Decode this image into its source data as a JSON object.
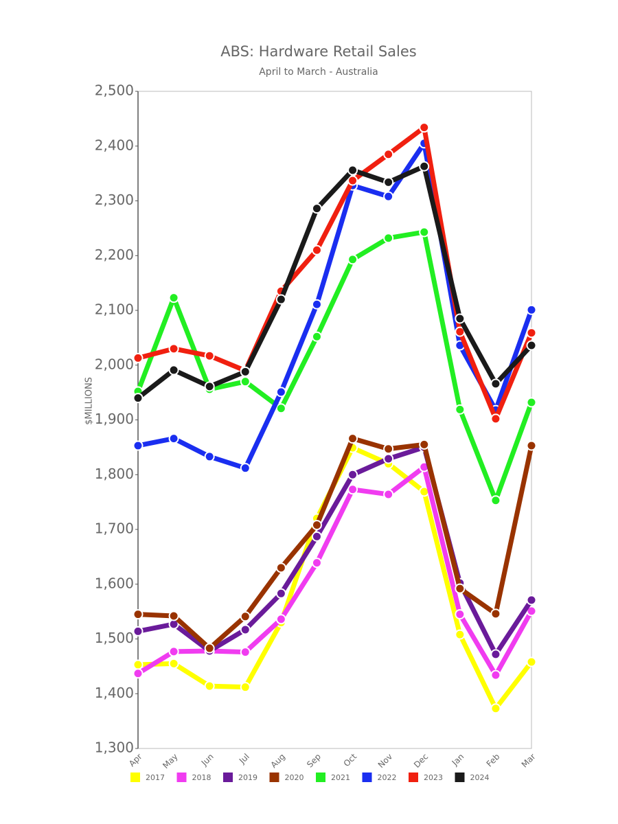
{
  "chart_data": {
    "type": "line",
    "title": "ABS: Hardware Retail Sales",
    "subtitle": "April to March - Australia",
    "y_label": "$MILLIONS",
    "categories": [
      "Apr",
      "May",
      "Jun",
      "Jul",
      "Aug",
      "Sep",
      "Oct",
      "Nov",
      "Dec",
      "Jan",
      "Feb",
      "Mar"
    ],
    "ylim": [
      1300,
      2500
    ],
    "yticks": [
      {
        "value": 1300,
        "label": "1,300"
      },
      {
        "value": 1400,
        "label": "1,400"
      },
      {
        "value": 1500,
        "label": "1,500"
      },
      {
        "value": 1600,
        "label": "1,600"
      },
      {
        "value": 1700,
        "label": "1,700"
      },
      {
        "value": 1800,
        "label": "1,800"
      },
      {
        "value": 1900,
        "label": "1,900"
      },
      {
        "value": 2000,
        "label": "2,000"
      },
      {
        "value": 2100,
        "label": "2,100"
      },
      {
        "value": 2200,
        "label": "2,200"
      },
      {
        "value": 2300,
        "label": "2,300"
      },
      {
        "value": 2400,
        "label": "2,400"
      },
      {
        "value": 2500,
        "label": "2,500"
      }
    ],
    "legend_position": "bottom",
    "series": [
      {
        "name": "2017",
        "color": "#ffff00",
        "values": [
          1453,
          1455,
          1414,
          1412,
          1530,
          1720,
          1849,
          1820,
          1769,
          1508,
          1373,
          1458
        ]
      },
      {
        "name": "2018",
        "color": "#f03cf0",
        "values": [
          1437,
          1477,
          1478,
          1476,
          1536,
          1639,
          1773,
          1764,
          1814,
          1545,
          1434,
          1551
        ]
      },
      {
        "name": "2019",
        "color": "#6a1b9a",
        "values": [
          1514,
          1527,
          1478,
          1517,
          1583,
          1687,
          1800,
          1829,
          1850,
          1602,
          1472,
          1571
        ]
      },
      {
        "name": "2020",
        "color": "#993300",
        "values": [
          1545,
          1542,
          1483,
          1541,
          1630,
          1708,
          1866,
          1847,
          1855,
          1592,
          1546,
          1853
        ]
      },
      {
        "name": "2021",
        "color": "#22ee22",
        "values": [
          1952,
          2123,
          1956,
          1970,
          1921,
          2052,
          2193,
          2232,
          2243,
          1919,
          1753,
          1932
        ]
      },
      {
        "name": "2022",
        "color": "#1a2ef0",
        "values": [
          1853,
          1866,
          1833,
          1812,
          1951,
          2111,
          2328,
          2308,
          2405,
          2036,
          1918,
          2101
        ]
      },
      {
        "name": "2023",
        "color": "#f02010",
        "values": [
          2013,
          2030,
          2017,
          1990,
          2135,
          2210,
          2337,
          2385,
          2434,
          2061,
          1902,
          2059
        ]
      },
      {
        "name": "2024",
        "color": "#1a1a1a",
        "values": [
          1940,
          1991,
          1961,
          1988,
          2120,
          2286,
          2356,
          2334,
          2363,
          2085,
          1966,
          2036
        ]
      }
    ]
  }
}
